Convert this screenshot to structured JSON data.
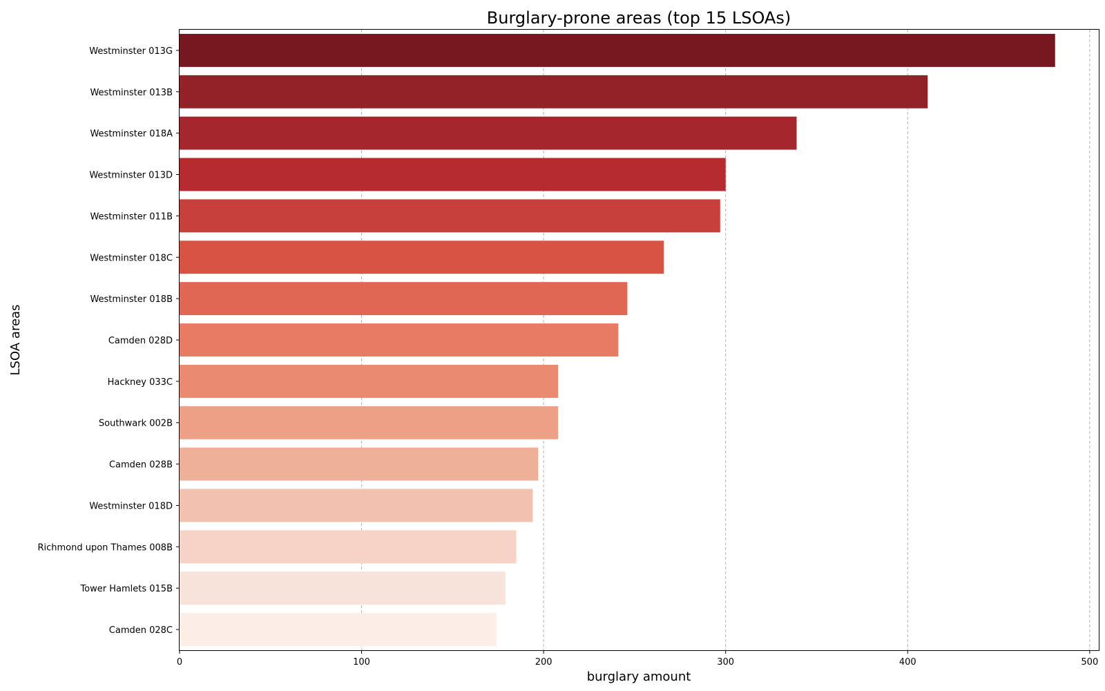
{
  "chart_data": {
    "type": "bar",
    "orientation": "horizontal",
    "title": "Burglary-prone areas (top 15 LSOAs)",
    "xlabel": "burglary amount",
    "ylabel": "LSOA areas",
    "xlim": [
      0,
      505
    ],
    "x_ticks": [
      0,
      100,
      200,
      300,
      400,
      500
    ],
    "grid": "x-axis dashed",
    "legend": "none",
    "categories": [
      "Westminster 013G",
      "Westminster 013B",
      "Westminster 018A",
      "Westminster 013D",
      "Westminster 011B",
      "Westminster 018C",
      "Westminster 018B",
      "Camden 028D",
      "Hackney 033C",
      "Southwark 002B",
      "Camden 028B",
      "Westminster 018D",
      "Richmond upon Thames 008B",
      "Tower Hamlets 015B",
      "Camden 028C"
    ],
    "values": [
      481,
      411,
      339,
      300,
      297,
      266,
      246,
      241,
      208,
      208,
      197,
      194,
      185,
      179,
      174
    ],
    "colors": [
      "#77171f",
      "#922128",
      "#a6262d",
      "#b52b30",
      "#c8403b",
      "#d85344",
      "#e16755",
      "#e87b64",
      "#ea8a71",
      "#eda086",
      "#efb09a",
      "#f2c1af",
      "#f6d3c6",
      "#f8e3da",
      "#fcede7"
    ]
  }
}
